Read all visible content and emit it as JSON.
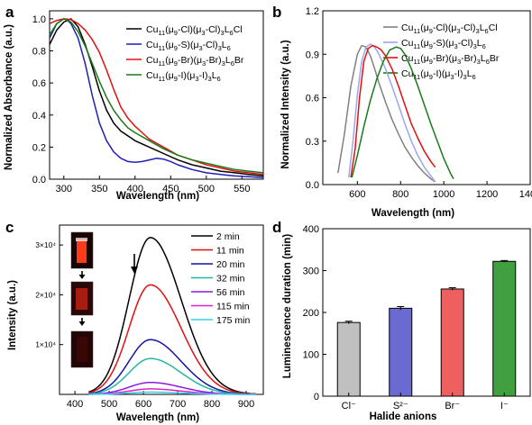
{
  "panels": [
    {
      "letter": "a"
    },
    {
      "letter": "b"
    },
    {
      "letter": "c"
    },
    {
      "letter": "d"
    }
  ],
  "chart_data": [
    {
      "id": "a",
      "type": "line",
      "xlabel": "Wavelength (nm)",
      "ylabel": "Normalized Absorbance (a.u.)",
      "xlim": [
        280,
        580
      ],
      "ylim": [
        0.0,
        1.05
      ],
      "xticks": [
        300,
        350,
        400,
        450,
        500,
        550
      ],
      "yticks": [
        0.0,
        0.2,
        0.4,
        0.6,
        0.8,
        1.0
      ],
      "legend": "top-right",
      "series": [
        {
          "name": "Cu11(μ9-Cl)(μ3-Cl)3L6Cl",
          "color": "#000000",
          "x": [
            280,
            290,
            300,
            310,
            320,
            330,
            340,
            350,
            360,
            370,
            380,
            390,
            400,
            420,
            440,
            460,
            480,
            500,
            520,
            540,
            560,
            580
          ],
          "y": [
            0.84,
            0.93,
            0.98,
            1.0,
            0.95,
            0.84,
            0.7,
            0.55,
            0.43,
            0.35,
            0.3,
            0.27,
            0.24,
            0.2,
            0.16,
            0.12,
            0.09,
            0.07,
            0.05,
            0.04,
            0.03,
            0.02
          ]
        },
        {
          "name": "Cu11(μ9-S)(μ3-Cl)3L6",
          "color": "#1f1fb8",
          "x": [
            280,
            290,
            300,
            305,
            310,
            320,
            330,
            340,
            350,
            360,
            370,
            380,
            390,
            400,
            410,
            420,
            430,
            440,
            450,
            460,
            480,
            500,
            520,
            540,
            560,
            580
          ],
          "y": [
            0.88,
            0.97,
            1.0,
            0.99,
            0.97,
            0.88,
            0.72,
            0.52,
            0.35,
            0.24,
            0.17,
            0.13,
            0.11,
            0.105,
            0.11,
            0.12,
            0.13,
            0.125,
            0.11,
            0.09,
            0.06,
            0.04,
            0.03,
            0.02,
            0.015,
            0.01
          ]
        },
        {
          "name": "Cu11(μ9-Br)(μ3-Br)3L6Br",
          "color": "#e01010",
          "x": [
            280,
            290,
            300,
            310,
            320,
            330,
            340,
            350,
            360,
            370,
            380,
            390,
            400,
            420,
            440,
            460,
            480,
            500,
            520,
            540,
            560,
            580
          ],
          "y": [
            0.97,
            0.99,
            1.0,
            0.995,
            0.97,
            0.93,
            0.87,
            0.79,
            0.68,
            0.56,
            0.45,
            0.38,
            0.33,
            0.25,
            0.2,
            0.15,
            0.12,
            0.09,
            0.07,
            0.05,
            0.04,
            0.03
          ]
        },
        {
          "name": "Cu11(μ9-I)(μ3-I)3L6",
          "color": "#1a7a1a",
          "x": [
            280,
            290,
            300,
            310,
            320,
            330,
            340,
            350,
            360,
            370,
            380,
            390,
            400,
            420,
            440,
            460,
            480,
            500,
            520,
            540,
            560,
            580
          ],
          "y": [
            0.9,
            0.97,
            1.0,
            0.98,
            0.92,
            0.83,
            0.72,
            0.61,
            0.51,
            0.43,
            0.37,
            0.32,
            0.29,
            0.24,
            0.19,
            0.15,
            0.12,
            0.1,
            0.08,
            0.06,
            0.05,
            0.04
          ]
        }
      ]
    },
    {
      "id": "b",
      "type": "line",
      "xlabel": "Wavelength (nm)",
      "ylabel": "Normalized Intensity (a.u.)",
      "xlim": [
        440,
        1400
      ],
      "ylim": [
        0.0,
        1.2
      ],
      "xticks": [
        600,
        800,
        1000,
        1200,
        1400
      ],
      "yticks": [
        0.0,
        0.3,
        0.6,
        0.9,
        1.2
      ],
      "legend": "top-right",
      "series": [
        {
          "name": "Cu11(μ9-Cl)(μ3-Cl)3L6Cl",
          "color": "#808080",
          "x": [
            510,
            540,
            570,
            600,
            620,
            640,
            660,
            680,
            700,
            730,
            760,
            790,
            820,
            850,
            880,
            910,
            940,
            960
          ],
          "y": [
            0.08,
            0.35,
            0.68,
            0.9,
            0.96,
            0.95,
            0.89,
            0.8,
            0.7,
            0.57,
            0.45,
            0.35,
            0.26,
            0.19,
            0.13,
            0.08,
            0.04,
            0.02
          ]
        },
        {
          "name": "Cu11(μ9-S)(μ3-Cl)3L6",
          "color": "#9aa6f0",
          "x": [
            560,
            580,
            600,
            620,
            640,
            660,
            680,
            700,
            730,
            760,
            790,
            820,
            850,
            880,
            910,
            940,
            955
          ],
          "y": [
            0.05,
            0.3,
            0.62,
            0.85,
            0.95,
            0.97,
            0.95,
            0.9,
            0.8,
            0.68,
            0.55,
            0.42,
            0.3,
            0.2,
            0.12,
            0.06,
            0.03
          ]
        },
        {
          "name": "Cu11(μ9-Br)(μ3-Br)3L6Br",
          "color": "#e01010",
          "x": [
            570,
            590,
            610,
            630,
            650,
            670,
            690,
            710,
            730,
            760,
            790,
            820,
            850,
            880,
            910,
            940,
            960
          ],
          "y": [
            0.05,
            0.25,
            0.6,
            0.85,
            0.94,
            0.96,
            0.95,
            0.93,
            0.89,
            0.8,
            0.68,
            0.55,
            0.42,
            0.32,
            0.23,
            0.16,
            0.12
          ]
        },
        {
          "name": "Cu11(μ9-I)(μ3-I)3L6",
          "color": "#1a7a1a",
          "x": [
            575,
            600,
            630,
            660,
            690,
            720,
            750,
            780,
            800,
            820,
            850,
            880,
            910,
            940,
            970,
            1000,
            1030,
            1045
          ],
          "y": [
            0.05,
            0.2,
            0.4,
            0.58,
            0.73,
            0.85,
            0.93,
            0.95,
            0.94,
            0.9,
            0.8,
            0.68,
            0.55,
            0.42,
            0.3,
            0.18,
            0.08,
            0.04
          ]
        }
      ]
    },
    {
      "id": "c",
      "type": "line",
      "xlabel": "Wavelength (nm)",
      "ylabel": "Intensity (a.u.)",
      "xlim": [
        355,
        950
      ],
      "ylim": [
        0,
        34000
      ],
      "xticks": [
        400,
        500,
        600,
        700,
        800,
        900
      ],
      "ytick_labels": [
        {
          "value": 10000,
          "text": "1×10⁴"
        },
        {
          "value": 20000,
          "text": "2×10⁴"
        },
        {
          "value": 30000,
          "text": "3×10⁴"
        }
      ],
      "legend": "top-right",
      "peak_nm": 620,
      "start_nm": 440,
      "end_nm": 930,
      "series": [
        {
          "name": "2 min",
          "color": "#000000",
          "peak": 31500
        },
        {
          "name": "11 min",
          "color": "#e01010",
          "peak": 22000
        },
        {
          "name": "20 min",
          "color": "#1414a0",
          "peak": 11000
        },
        {
          "name": "32 min",
          "color": "#20b8a0",
          "peak": 7200
        },
        {
          "name": "56 min",
          "color": "#8a1ae0",
          "peak": 2400
        },
        {
          "name": "115 min",
          "color": "#e020c8",
          "peak": 1100
        },
        {
          "name": "175 min",
          "color": "#30d0f0",
          "peak": 450
        }
      ]
    },
    {
      "id": "d",
      "type": "bar",
      "xlabel": "Halide anions",
      "ylabel": "Luminescence duration (min)",
      "ylim": [
        0,
        400
      ],
      "yticks": [
        0,
        100,
        200,
        300,
        400
      ],
      "categories": [
        "Cl⁻",
        "S²⁻",
        "Br⁻",
        "I⁻"
      ],
      "values": [
        176,
        210,
        256,
        322
      ],
      "errors": [
        3,
        4,
        3,
        2
      ],
      "colors": [
        "#c0c0c0",
        "#6a6ad0",
        "#ee6060",
        "#40a040"
      ]
    }
  ]
}
